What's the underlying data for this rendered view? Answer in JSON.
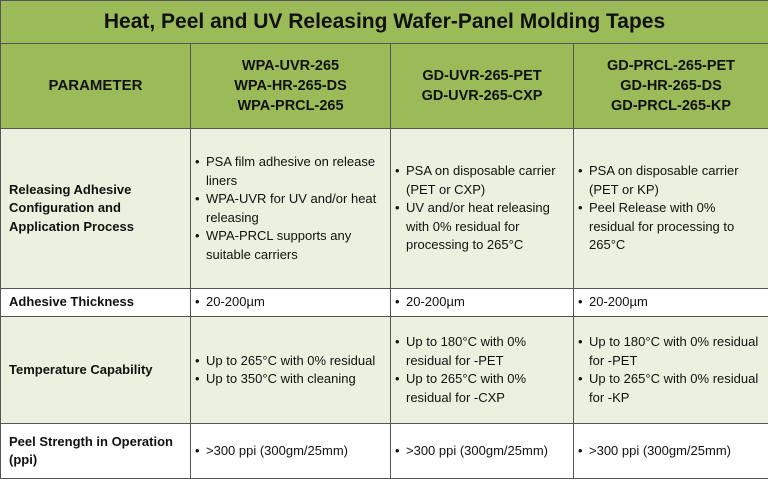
{
  "title": "Heat, Peel and UV Releasing Wafer-Panel Molding Tapes",
  "header": {
    "parameter": "PARAMETER",
    "col1": [
      "WPA-UVR-265",
      "WPA-HR-265-DS",
      "WPA-PRCL-265"
    ],
    "col2": [
      "GD-UVR-265-PET",
      "GD-UVR-265-CXP"
    ],
    "col3": [
      "GD-PRCL-265-PET",
      "GD-HR-265-DS",
      "GD-PRCL-265-KP"
    ]
  },
  "rows": [
    {
      "label": "Releasing Adhesive Configuration and Application Process",
      "c1": [
        "PSA film adhesive on release liners",
        "WPA-UVR for UV and/or heat releasing",
        "WPA-PRCL supports any suitable carriers"
      ],
      "c2": [
        "PSA on disposable carrier (PET or CXP)",
        "UV and/or heat releasing with 0% residual for processing to 265°C"
      ],
      "c3": [
        "PSA on disposable carrier (PET or KP)",
        "Peel Release with 0% residual for processing to 265°C"
      ]
    },
    {
      "label": "Adhesive Thickness",
      "c1": [
        "20-200µm"
      ],
      "c2": [
        "20-200µm"
      ],
      "c3": [
        "20-200µm"
      ]
    },
    {
      "label": "Temperature Capability",
      "c1": [
        "Up to 265°C with 0% residual",
        "Up to 350°C with cleaning"
      ],
      "c2": [
        "Up to 180°C with 0% residual for -PET",
        "Up to 265°C with 0% residual for -CXP"
      ],
      "c3": [
        "Up to 180°C with 0% residual for -PET",
        "Up to 265°C with 0% residual for -KP"
      ]
    },
    {
      "label": "Peel Strength in Operation (ppi)",
      "c1": [
        ">300 ppi (300gm/25mm)"
      ],
      "c2": [
        ">300 ppi (300gm/25mm)"
      ],
      "c3": [
        ">300 ppi (300gm/25mm)"
      ]
    }
  ],
  "colors": {
    "header_bg": "#9bbb59",
    "alt_row_bg": "#ebf1de",
    "border": "#555555"
  }
}
